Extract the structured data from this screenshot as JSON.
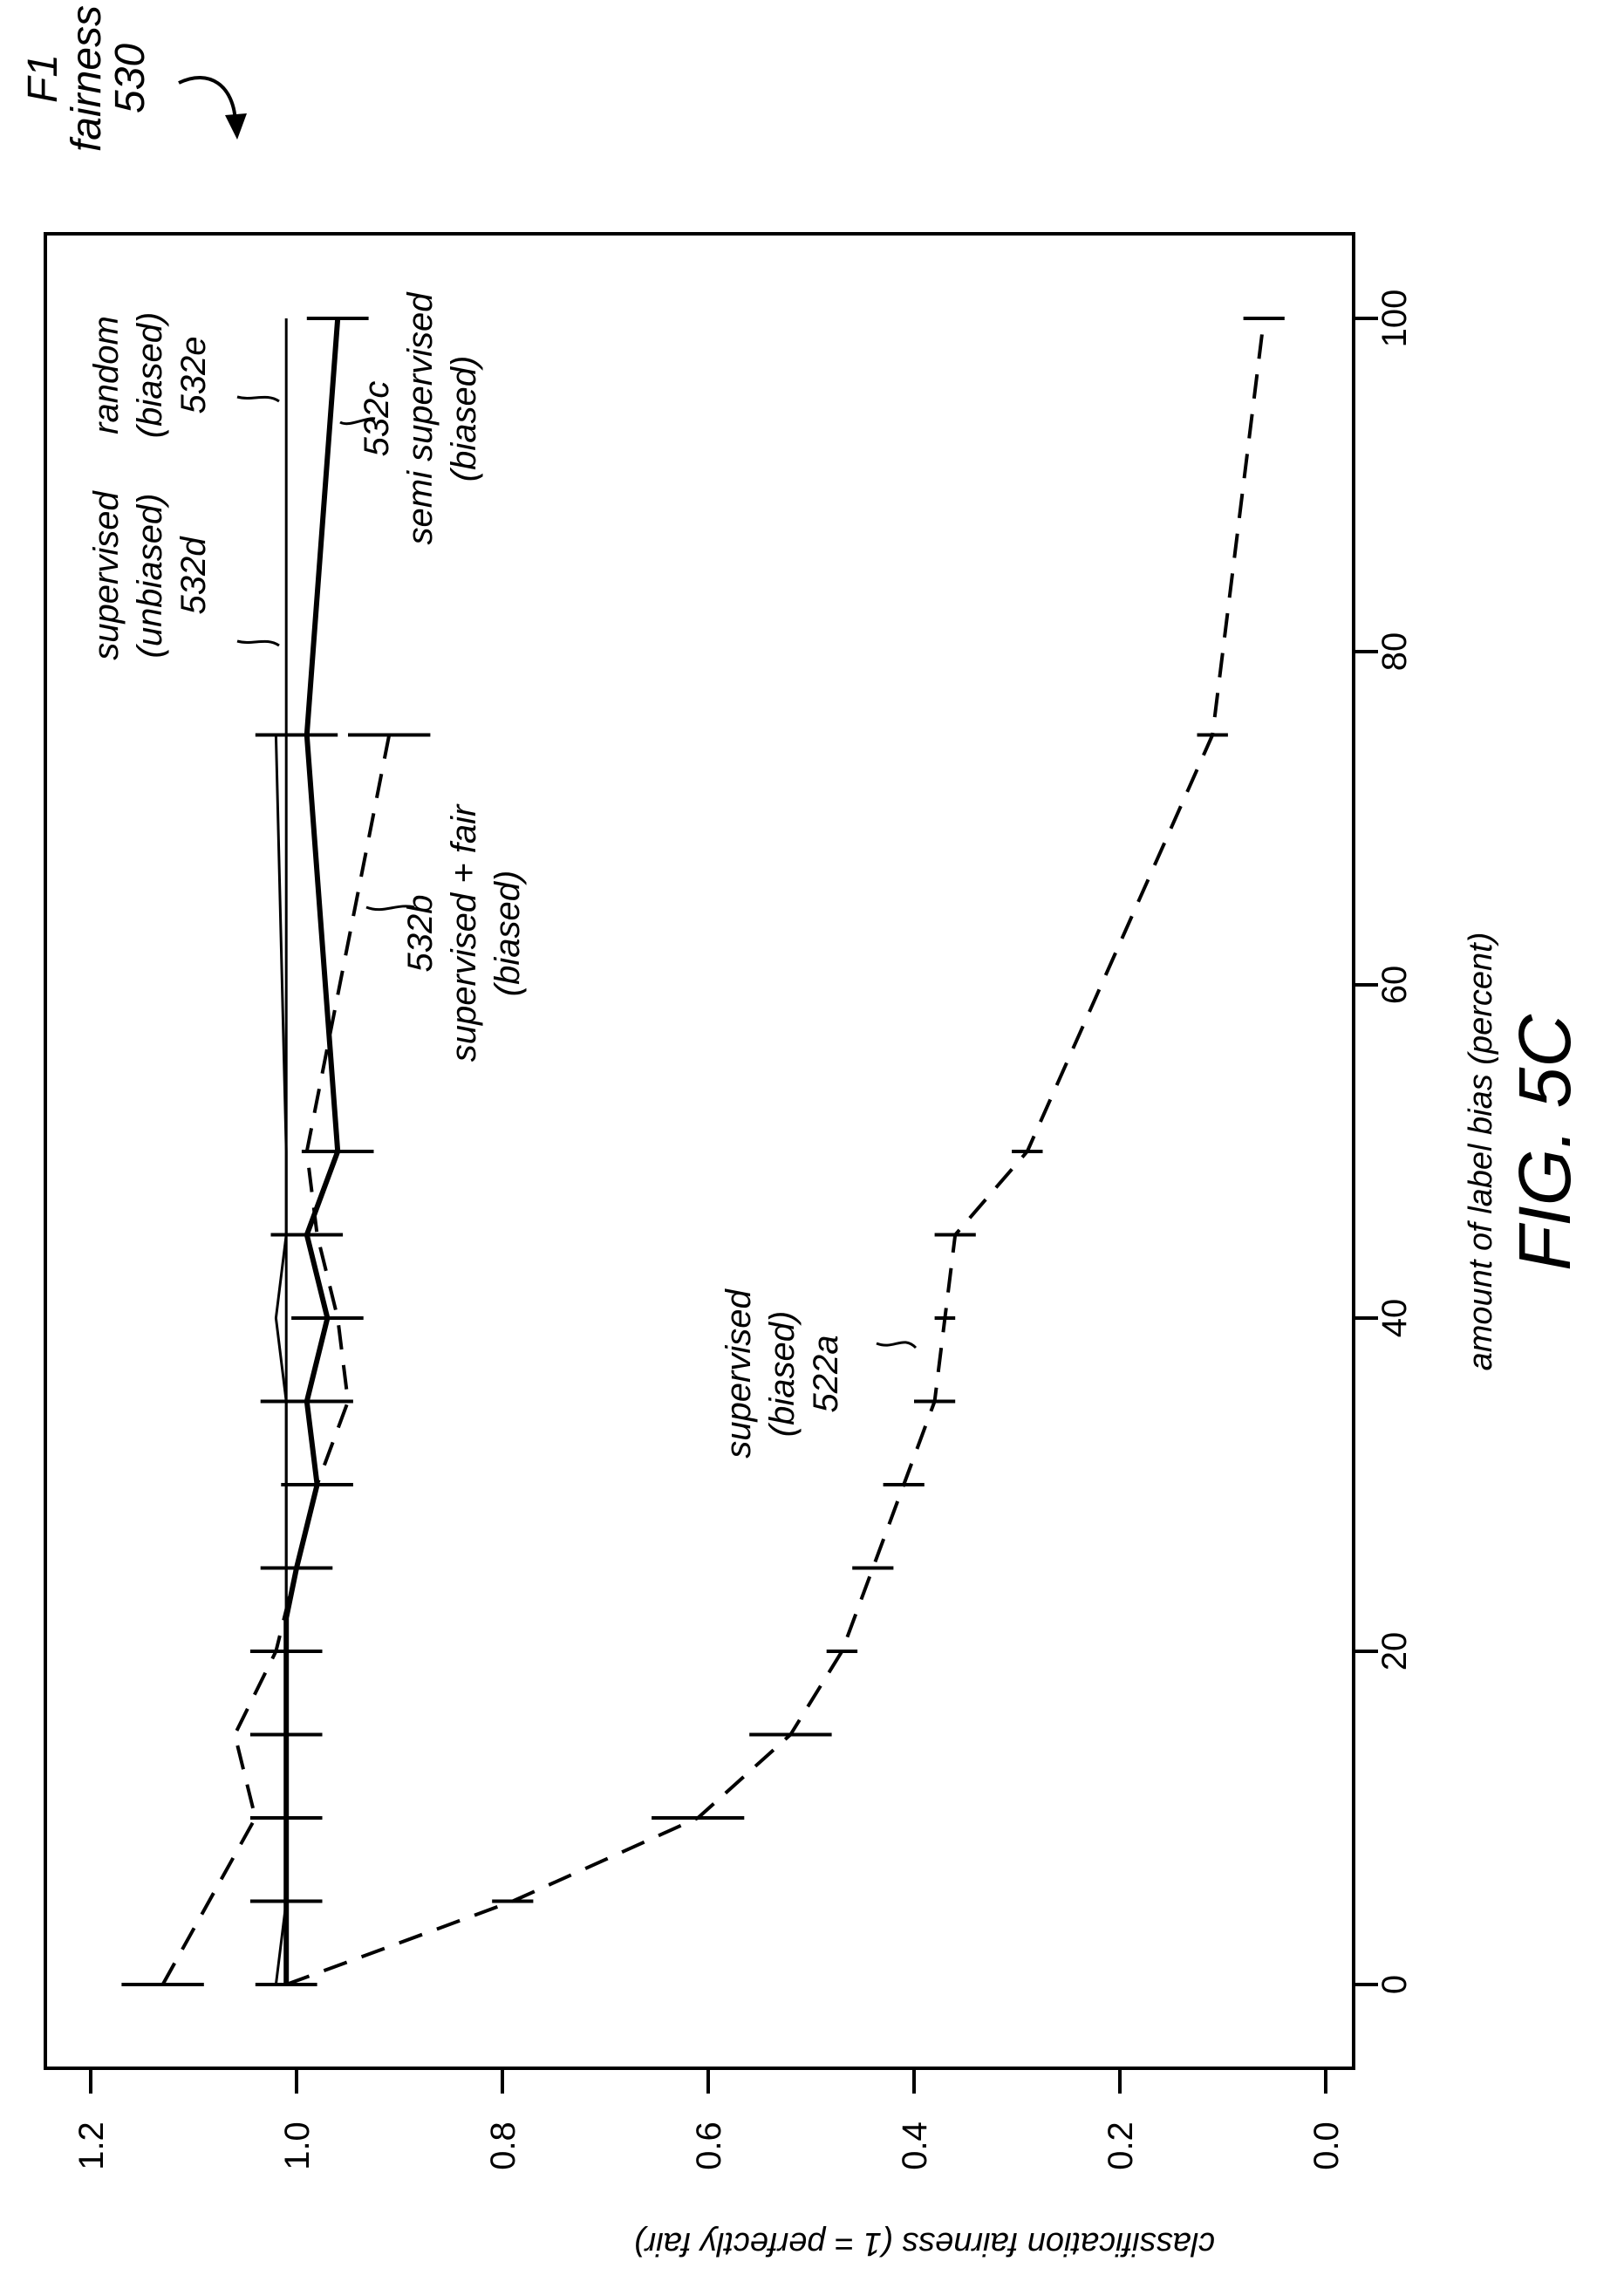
{
  "figure": {
    "label": "FIG. 5C",
    "ref_title_lines": [
      "F1",
      "fairness",
      "530"
    ]
  },
  "chart_data": {
    "type": "line",
    "xlabel": "amount of label bias (percent)",
    "ylabel": "classification fairness (1 = perfectly fair)",
    "xlim": [
      -4,
      104
    ],
    "ylim": [
      -0.02,
      1.22
    ],
    "xticks": [
      0,
      20,
      40,
      60,
      80,
      100
    ],
    "yticks": [
      "0.0",
      "0.2",
      "0.4",
      "0.6",
      "0.8",
      "1.0",
      "1.2"
    ],
    "grid": false,
    "orientation": "rotated-90-ccw",
    "series": [
      {
        "id": "532a",
        "label_lines": [
          "supervised",
          "(biased)",
          "522a"
        ],
        "style": "dashed",
        "x": [
          0,
          5,
          10,
          15,
          20,
          25,
          30,
          35,
          40,
          45,
          50,
          75,
          100
        ],
        "y": [
          1.01,
          0.79,
          0.61,
          0.52,
          0.47,
          0.44,
          0.41,
          0.38,
          0.37,
          0.36,
          0.29,
          0.11,
          0.06
        ],
        "err": [
          0,
          0.02,
          0.045,
          0.04,
          0.015,
          0.02,
          0.02,
          0.02,
          0.01,
          0.02,
          0.015,
          0.015,
          0.02
        ]
      },
      {
        "id": "532b",
        "label_lines": [
          "532b",
          "supervised + fair",
          "(biased)"
        ],
        "style": "dashed",
        "x": [
          0,
          10,
          15,
          20,
          25,
          30,
          35,
          40,
          45,
          50,
          75
        ],
        "y": [
          1.13,
          1.04,
          1.06,
          1.02,
          1.0,
          0.98,
          0.95,
          0.96,
          0.98,
          0.99,
          0.91
        ],
        "err": [
          0.04,
          0,
          0,
          0,
          0,
          0,
          0,
          0,
          0,
          0,
          0.04
        ]
      },
      {
        "id": "532c",
        "label_lines": [
          "532c",
          "semi supervised",
          "(biased)"
        ],
        "style": "solid-thick",
        "x": [
          0,
          5,
          10,
          15,
          20,
          22,
          25,
          30,
          35,
          40,
          45,
          50,
          75,
          100
        ],
        "y": [
          1.01,
          1.01,
          1.01,
          1.01,
          1.01,
          1.01,
          1.0,
          0.98,
          0.99,
          0.97,
          0.99,
          0.96,
          0.99,
          0.96
        ],
        "err": [
          0.03,
          0.035,
          0.035,
          0.035,
          0.035,
          0,
          0.035,
          0.035,
          0.045,
          0.035,
          0.035,
          0.035,
          0.03,
          0.03
        ]
      },
      {
        "id": "532d",
        "label_lines": [
          "supervised",
          "(unbiased)",
          "532d"
        ],
        "style": "solid-thin",
        "x": [
          0,
          5,
          10,
          15,
          20,
          25,
          30,
          35,
          40,
          45,
          50,
          75
        ],
        "y": [
          1.02,
          1.01,
          1.01,
          1.01,
          1.01,
          1.01,
          1.01,
          1.01,
          1.02,
          1.01,
          1.01,
          1.02
        ],
        "err": [
          0,
          0,
          0,
          0,
          0,
          0,
          0,
          0,
          0,
          0,
          0,
          0.02
        ]
      },
      {
        "id": "532e",
        "label_lines": [
          "random",
          "(biased)",
          "532e"
        ],
        "style": "solid-thin",
        "x": [
          0,
          25,
          50,
          75,
          100
        ],
        "y": [
          1.01,
          1.01,
          1.01,
          1.01,
          1.01
        ],
        "err": [
          0,
          0,
          0,
          0,
          0
        ]
      }
    ]
  }
}
